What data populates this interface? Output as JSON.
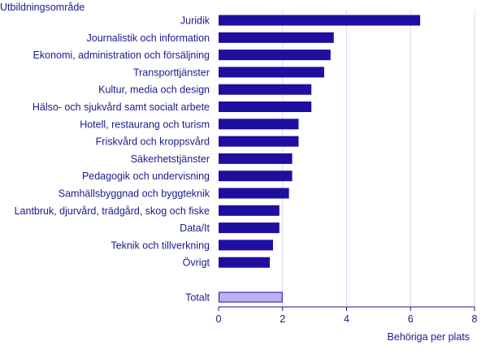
{
  "chart_data": {
    "type": "bar",
    "orientation": "horizontal",
    "ylabel": "Utbildningsområde",
    "xlabel": "Behöriga  per plats",
    "xlim": [
      0,
      8
    ],
    "xticks": [
      0,
      2,
      4,
      6,
      8
    ],
    "grid": true,
    "categories": [
      "Juridik",
      "Journalistik och information",
      "Ekonomi, administration och försäljning",
      "Transporttjänster",
      "Kultur, media och design",
      "Hälso- och sjukvård samt socialt arbete",
      "Hotell, restaurang och turism",
      "Friskvård och kroppsvård",
      "Säkerhetstjänster",
      "Pedagogik och undervisning",
      "Samhällsbyggnad och byggteknik",
      "Lantbruk, djurvård, trädgård, skog och fiske",
      "Data/It",
      "Teknik och tillverkning",
      "Övrigt"
    ],
    "values": [
      6.3,
      3.6,
      3.5,
      3.3,
      2.9,
      2.9,
      2.5,
      2.5,
      2.3,
      2.3,
      2.2,
      1.9,
      1.9,
      1.7,
      1.6
    ],
    "total": {
      "label": "Totalt",
      "value": 2.0
    },
    "colors": {
      "bar": "#1e0fa0",
      "total_bar": "#b9b2ef",
      "total_border": "#1e0fa0",
      "text": "#1a1a8c",
      "grid": "#d8d6f0"
    }
  }
}
